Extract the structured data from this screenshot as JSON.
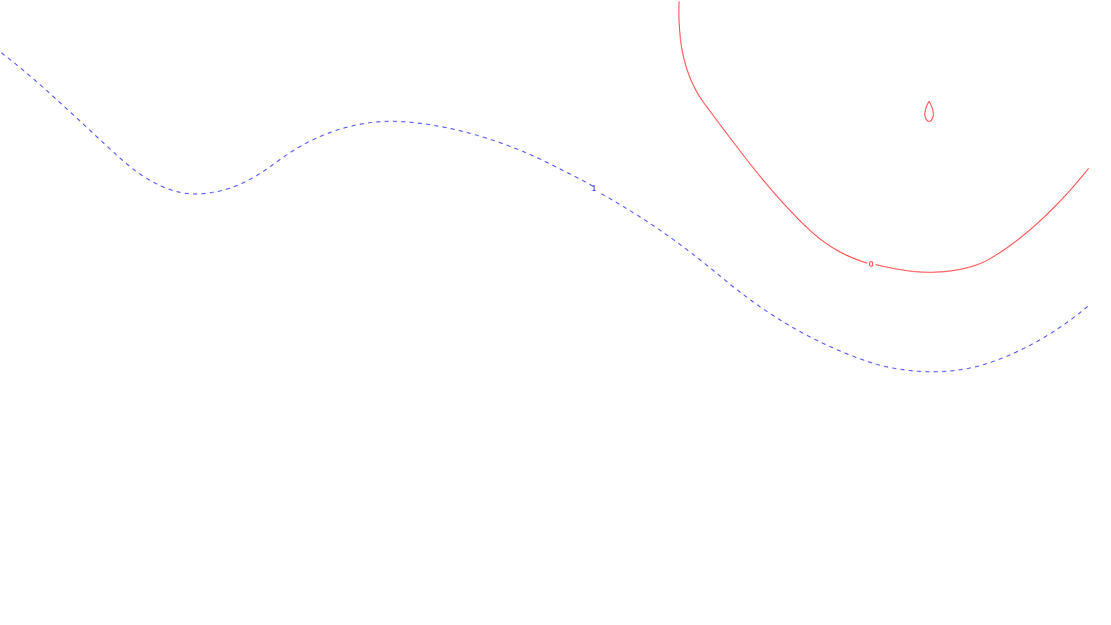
{
  "chart_data": {
    "type": "contour",
    "title": "",
    "xlabel": "",
    "ylabel": "",
    "axes_visible": false,
    "grid": false,
    "legend": "none",
    "levels": [
      {
        "level": "1",
        "label_text": "1",
        "color": "#0000ff",
        "line_style": "dashed"
      },
      {
        "level": "0",
        "label_text": "0",
        "color": "#ff0000",
        "line_style": "solid"
      },
      {
        "level": "0",
        "label_text": "",
        "color": "#ff0000",
        "line_style": "solid",
        "closed": true
      }
    ]
  }
}
